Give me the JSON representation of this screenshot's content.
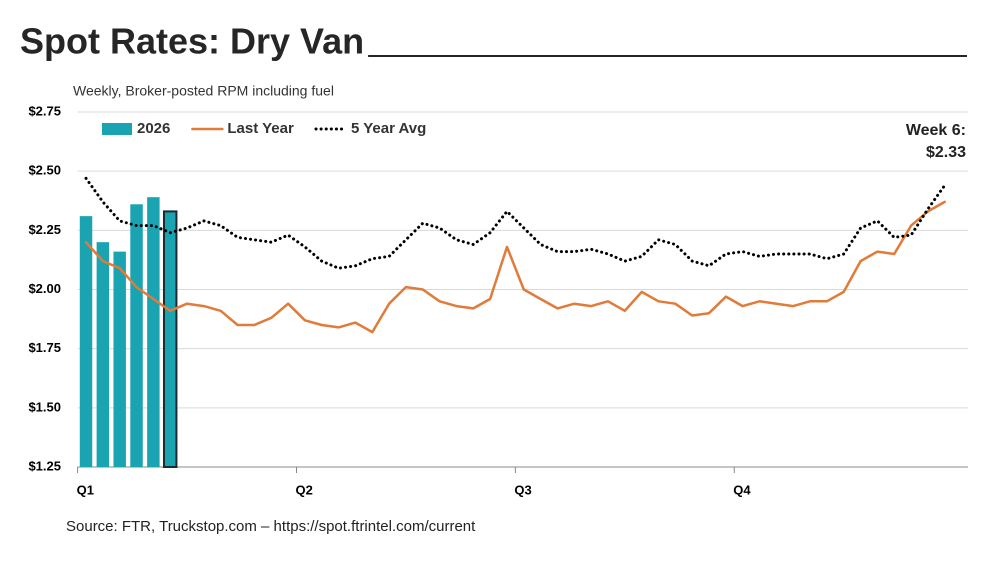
{
  "chart_data": {
    "type": "line",
    "title": "Spot Rates: Dry Van",
    "subtitle": "Weekly, Broker-posted RPM including fuel",
    "source": "Source: FTR, Truckstop.com – https://spot.ftrintel.com/current",
    "annotation": [
      "Week 6:",
      "$2.33"
    ],
    "xlim": [
      0.5,
      53.5
    ],
    "xticks": [
      {
        "value": 0.5,
        "label": "Q1"
      },
      {
        "value": 13.5,
        "label": "Q2"
      },
      {
        "value": 26.5,
        "label": "Q3"
      },
      {
        "value": 39.5,
        "label": "Q4"
      }
    ],
    "ylim": [
      1.25,
      2.75
    ],
    "yticks": [
      {
        "value": 1.25,
        "label": "$1.25"
      },
      {
        "value": 1.5,
        "label": "$1.50"
      },
      {
        "value": 1.75,
        "label": "$1.75"
      },
      {
        "value": 2.0,
        "label": "$2.00"
      },
      {
        "value": 2.25,
        "label": "$2.25"
      },
      {
        "value": 2.5,
        "label": "$2.50"
      },
      {
        "value": 2.75,
        "label": "$2.75"
      }
    ],
    "grid": true,
    "legend": "top-left",
    "series": [
      {
        "name": "2026",
        "type": "bar",
        "color": "#1aa3b0",
        "x": [
          1,
          2,
          3,
          4,
          5,
          6
        ],
        "values": [
          2.31,
          2.2,
          2.16,
          2.36,
          2.39,
          2.33
        ]
      },
      {
        "name": "Last Year",
        "type": "line",
        "color": "#e07b39",
        "dash": "solid",
        "x": [
          1,
          2,
          3,
          4,
          5,
          6,
          7,
          8,
          9,
          10,
          11,
          12,
          13,
          14,
          15,
          16,
          17,
          18,
          19,
          20,
          21,
          22,
          23,
          24,
          25,
          26,
          27,
          28,
          29,
          30,
          31,
          32,
          33,
          34,
          35,
          36,
          37,
          38,
          39,
          40,
          41,
          42,
          43,
          44,
          45,
          46,
          47,
          48,
          49,
          50,
          51,
          52
        ],
        "values": [
          2.2,
          2.12,
          2.09,
          2.01,
          1.96,
          1.91,
          1.94,
          1.93,
          1.91,
          1.85,
          1.85,
          1.88,
          1.94,
          1.87,
          1.85,
          1.84,
          1.86,
          1.82,
          1.94,
          2.01,
          2.0,
          1.95,
          1.93,
          1.92,
          1.96,
          2.18,
          2.0,
          1.96,
          1.92,
          1.94,
          1.93,
          1.95,
          1.91,
          1.99,
          1.95,
          1.94,
          1.89,
          1.9,
          1.97,
          1.93,
          1.95,
          1.94,
          1.93,
          1.95,
          1.95,
          1.99,
          2.12,
          2.16,
          2.15,
          2.27,
          2.33,
          2.37
        ]
      },
      {
        "name": "5 Year Avg",
        "type": "line",
        "color": "#000000",
        "dash": "dotted",
        "x": [
          1,
          2,
          3,
          4,
          5,
          6,
          7,
          8,
          9,
          10,
          11,
          12,
          13,
          14,
          15,
          16,
          17,
          18,
          19,
          20,
          21,
          22,
          23,
          24,
          25,
          26,
          27,
          28,
          29,
          30,
          31,
          32,
          33,
          34,
          35,
          36,
          37,
          38,
          39,
          40,
          41,
          42,
          43,
          44,
          45,
          46,
          47,
          48,
          49,
          50,
          51,
          52
        ],
        "values": [
          2.47,
          2.37,
          2.29,
          2.27,
          2.27,
          2.24,
          2.26,
          2.29,
          2.27,
          2.22,
          2.21,
          2.2,
          2.23,
          2.18,
          2.12,
          2.09,
          2.1,
          2.13,
          2.14,
          2.21,
          2.28,
          2.26,
          2.21,
          2.19,
          2.24,
          2.33,
          2.26,
          2.19,
          2.16,
          2.16,
          2.17,
          2.15,
          2.12,
          2.14,
          2.21,
          2.19,
          2.12,
          2.1,
          2.15,
          2.16,
          2.14,
          2.15,
          2.15,
          2.15,
          2.13,
          2.15,
          2.26,
          2.29,
          2.22,
          2.23,
          2.34,
          2.44
        ]
      }
    ]
  }
}
